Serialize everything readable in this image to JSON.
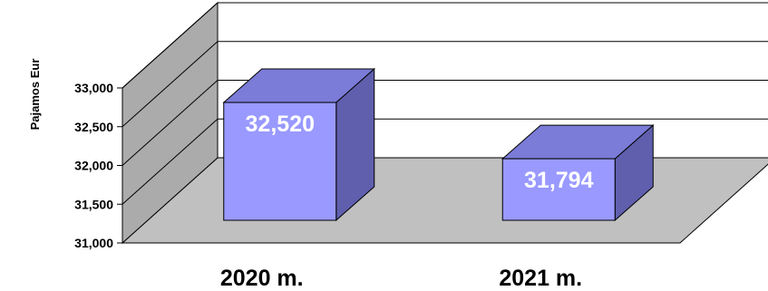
{
  "chart_data": {
    "type": "bar",
    "style": "3d",
    "categories": [
      "2020 m.",
      "2021 m."
    ],
    "values": [
      32520,
      31794
    ],
    "data_labels": [
      "32,520",
      "31,794"
    ],
    "title": "",
    "xlabel": "",
    "ylabel": "Pajamos Eur",
    "ylim": [
      31000,
      33000
    ],
    "yticks": [
      31000,
      31500,
      32000,
      32500,
      33000
    ],
    "ytick_labels": [
      "31,000",
      "31,500",
      "32,000",
      "32,500",
      "33,000"
    ],
    "grid": true,
    "legend": "none",
    "colors": {
      "bar_front": "#9999ff",
      "bar_top": "#7b7bd8",
      "bar_side": "#5f5fae",
      "wall": "#c0c0c0",
      "wall_shade": "#ababab",
      "floor": "#c0c0c0",
      "grid": "#000000"
    }
  }
}
